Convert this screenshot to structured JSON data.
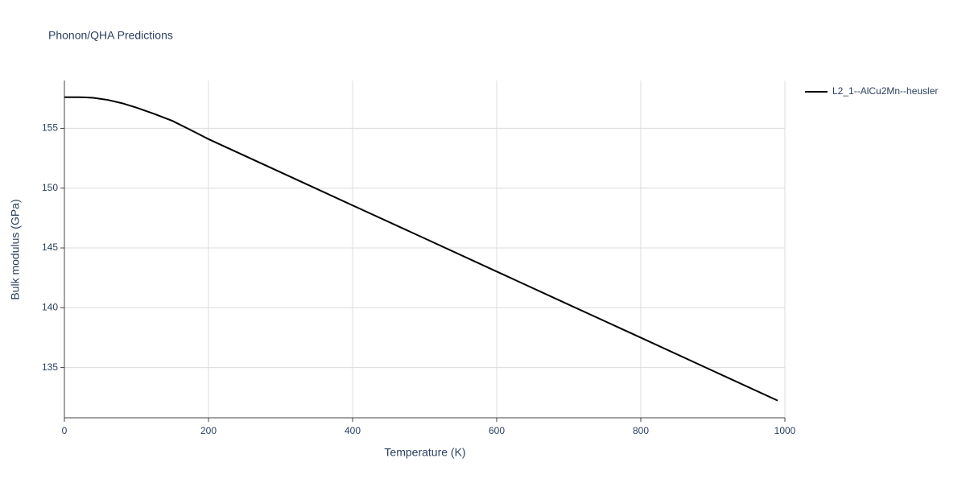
{
  "chart_data": {
    "type": "line",
    "title": "Phonon/QHA Predictions",
    "x_label": "Temperature (K)",
    "y_label": "Bulk modulus (GPa)",
    "x": [
      0,
      10,
      20,
      30,
      40,
      60,
      80,
      100,
      125,
      150,
      175,
      200,
      300,
      400,
      500,
      600,
      700,
      800,
      900,
      990
    ],
    "series": [
      {
        "name": "L2_1--AlCu2Mn--heusler",
        "color": "#000000",
        "values": [
          157.6,
          157.6,
          157.6,
          157.59,
          157.55,
          157.38,
          157.1,
          156.73,
          156.2,
          155.62,
          154.87,
          154.1,
          151.33,
          148.56,
          145.8,
          143.03,
          140.26,
          137.5,
          134.73,
          132.24
        ]
      }
    ],
    "xlim": [
      0,
      1000
    ],
    "xticks": [
      0,
      200,
      400,
      600,
      800,
      1000
    ],
    "ylim": [
      130.8,
      159
    ],
    "yticks": [
      135,
      140,
      145,
      150,
      155
    ],
    "grid": true,
    "legend": "right"
  }
}
